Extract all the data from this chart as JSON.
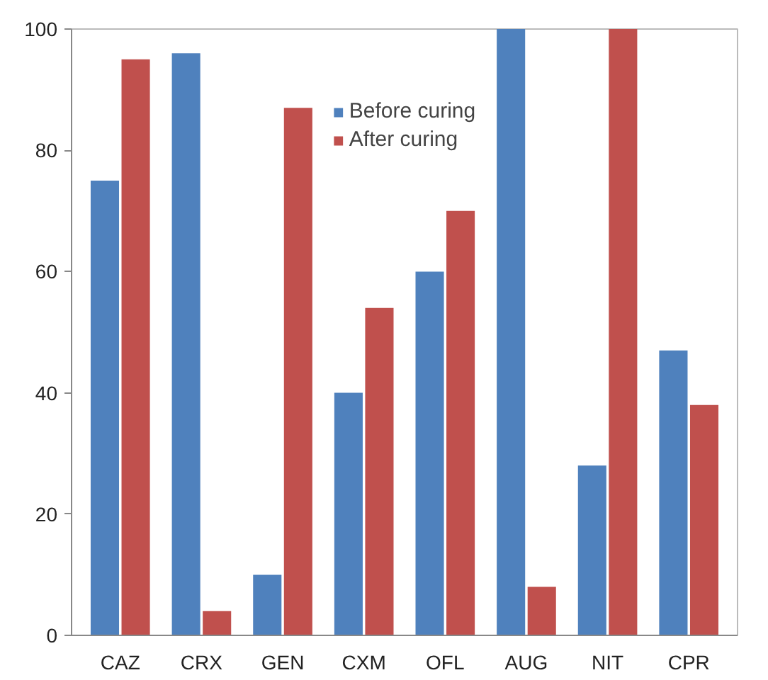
{
  "chart_data": {
    "type": "bar",
    "categories": [
      "CAZ",
      "CRX",
      "GEN",
      "CXM",
      "OFL",
      "AUG",
      "NIT",
      "CPR"
    ],
    "series": [
      {
        "name": "Before curing",
        "color": "#4f81bd",
        "values": [
          75,
          96,
          10,
          40,
          60,
          100,
          28,
          47
        ]
      },
      {
        "name": "After curing",
        "color": "#c0504d",
        "values": [
          95,
          4,
          87,
          54,
          70,
          8,
          100,
          38
        ]
      }
    ],
    "ylim": [
      0,
      100
    ],
    "yticks": [
      0,
      20,
      40,
      60,
      80,
      100
    ],
    "grid": false,
    "legend": "top"
  }
}
